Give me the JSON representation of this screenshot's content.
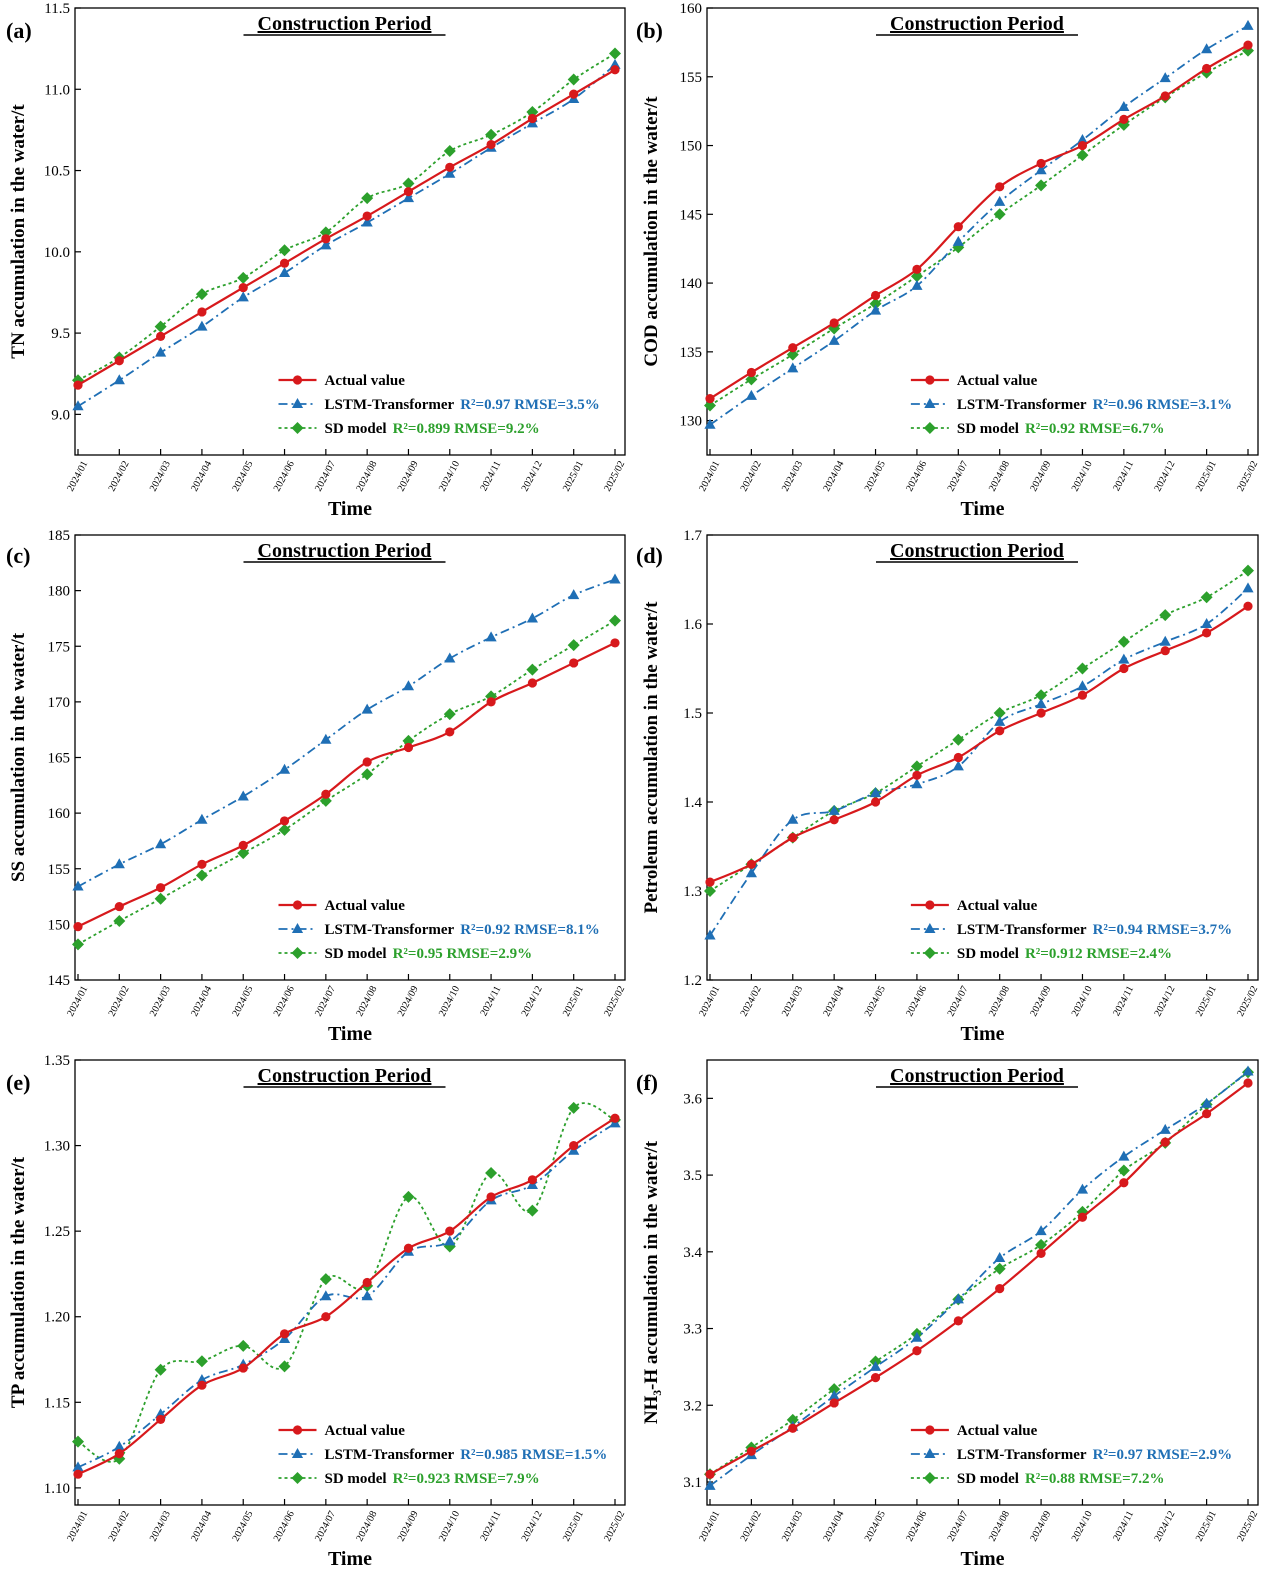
{
  "colors": {
    "actual": "#d7191c",
    "lstm": "#1f6fb5",
    "sd": "#2ca02c",
    "axis": "#000000"
  },
  "chart_data": [
    {
      "panel": "(a)",
      "type": "line",
      "title": "Construction Period",
      "xlabel": "Time",
      "ylabel": "TN accumulation in the water/t",
      "categories": [
        "2024/01",
        "2024/02",
        "2024/03",
        "2024/04",
        "2024/05",
        "2024/06",
        "2024/07",
        "2024/08",
        "2024/09",
        "2024/10",
        "2024/11",
        "2024/12",
        "2025/01",
        "2025/02"
      ],
      "ylim": [
        8.75,
        11.5
      ],
      "yticks": [
        "9.0",
        "9.5",
        "10.0",
        "10.5",
        "11.0",
        "11.5"
      ],
      "yticks_values": [
        9.0,
        9.5,
        10.0,
        10.5,
        11.0,
        11.5
      ],
      "legend_position": "bottom-right",
      "series": [
        {
          "name": "Actual value",
          "stats": "",
          "values": [
            9.18,
            9.33,
            9.48,
            9.63,
            9.78,
            9.93,
            10.08,
            10.22,
            10.37,
            10.52,
            10.66,
            10.82,
            10.97,
            11.12
          ]
        },
        {
          "name": "LSTM-Transformer",
          "stats": "R²=0.97 RMSE=3.5%",
          "values": [
            9.05,
            9.21,
            9.38,
            9.54,
            9.72,
            9.87,
            10.04,
            10.18,
            10.33,
            10.48,
            10.64,
            10.79,
            10.94,
            11.15
          ]
        },
        {
          "name": "SD model",
          "stats": "R²=0.899 RMSE=9.2%",
          "values": [
            9.21,
            9.35,
            9.54,
            9.74,
            9.84,
            10.01,
            10.12,
            10.33,
            10.42,
            10.62,
            10.72,
            10.86,
            11.06,
            11.22
          ]
        }
      ]
    },
    {
      "panel": "(b)",
      "type": "line",
      "title": "Construction Period",
      "xlabel": "Time",
      "ylabel": "COD accumulation in the water/t",
      "categories": [
        "2024/01",
        "2024/02",
        "2024/03",
        "2024/04",
        "2024/05",
        "2024/06",
        "2024/07",
        "2024/08",
        "2024/09",
        "2024/10",
        "2024/11",
        "2024/12",
        "2025/01",
        "2025/02"
      ],
      "ylim": [
        127.5,
        160
      ],
      "yticks": [
        "130",
        "135",
        "140",
        "145",
        "150",
        "155",
        "160"
      ],
      "yticks_values": [
        130,
        135,
        140,
        145,
        150,
        155,
        160
      ],
      "legend_position": "bottom-right",
      "series": [
        {
          "name": "Actual value",
          "stats": "",
          "values": [
            131.6,
            133.5,
            135.3,
            137.1,
            139.1,
            141.0,
            144.1,
            147.0,
            148.7,
            150.0,
            151.9,
            153.6,
            155.6,
            157.3
          ]
        },
        {
          "name": "LSTM-Transformer",
          "stats": "R²=0.96 RMSE=3.1%",
          "values": [
            129.7,
            131.8,
            133.8,
            135.8,
            138.0,
            139.8,
            143.0,
            145.9,
            148.2,
            150.4,
            152.8,
            154.9,
            157.0,
            158.7
          ]
        },
        {
          "name": "SD model",
          "stats": "R²=0.92 RMSE=6.7%",
          "values": [
            131.1,
            133.0,
            134.8,
            136.7,
            138.5,
            140.5,
            142.6,
            145.0,
            147.1,
            149.3,
            151.5,
            153.5,
            155.3,
            156.9
          ]
        }
      ]
    },
    {
      "panel": "(c)",
      "type": "line",
      "title": "Construction Period",
      "xlabel": "Time",
      "ylabel": "SS accumulation in the water/t",
      "categories": [
        "2024/01",
        "2024/02",
        "2024/03",
        "2024/04",
        "2024/05",
        "2024/06",
        "2024/07",
        "2024/08",
        "2024/09",
        "2024/10",
        "2024/11",
        "2024/12",
        "2025/01",
        "2025/02"
      ],
      "ylim": [
        145,
        185
      ],
      "yticks": [
        "145",
        "150",
        "155",
        "160",
        "165",
        "170",
        "175",
        "180",
        "185"
      ],
      "yticks_values": [
        145,
        150,
        155,
        160,
        165,
        170,
        175,
        180,
        185
      ],
      "legend_position": "bottom-right",
      "series": [
        {
          "name": "Actual value",
          "stats": "",
          "values": [
            149.8,
            151.6,
            153.3,
            155.4,
            157.1,
            159.3,
            161.7,
            164.6,
            165.9,
            167.3,
            170.0,
            171.7,
            173.5,
            175.3
          ]
        },
        {
          "name": "LSTM-Transformer",
          "stats": "R²=0.92 RMSE=8.1%",
          "values": [
            153.4,
            155.4,
            157.2,
            159.4,
            161.5,
            163.9,
            166.6,
            169.3,
            171.4,
            173.9,
            175.8,
            177.5,
            179.6,
            181.0
          ]
        },
        {
          "name": "SD model",
          "stats": "R²=0.95 RMSE=2.9%",
          "values": [
            148.2,
            150.3,
            152.3,
            154.4,
            156.4,
            158.5,
            161.1,
            163.5,
            166.5,
            168.9,
            170.5,
            172.9,
            175.1,
            177.3
          ]
        }
      ]
    },
    {
      "panel": "(d)",
      "type": "line",
      "title": "Construction Period",
      "xlabel": "Time",
      "ylabel": "Petroleum accumulation in the water/t",
      "categories": [
        "2024/01",
        "2024/02",
        "2024/03",
        "2024/04",
        "2024/05",
        "2024/06",
        "2024/07",
        "2024/08",
        "2024/09",
        "2024/10",
        "2024/11",
        "2024/12",
        "2025/01",
        "2025/02"
      ],
      "ylim": [
        1.2,
        1.7
      ],
      "yticks": [
        "1.2",
        "1.3",
        "1.4",
        "1.5",
        "1.6",
        "1.7"
      ],
      "yticks_values": [
        1.2,
        1.3,
        1.4,
        1.5,
        1.6,
        1.7
      ],
      "legend_position": "bottom-right",
      "series": [
        {
          "name": "Actual value",
          "stats": "",
          "values": [
            1.31,
            1.33,
            1.36,
            1.38,
            1.4,
            1.43,
            1.45,
            1.48,
            1.5,
            1.52,
            1.55,
            1.57,
            1.59,
            1.62
          ]
        },
        {
          "name": "LSTM-Transformer",
          "stats": "R²=0.94 RMSE=3.7%",
          "values": [
            1.25,
            1.32,
            1.38,
            1.39,
            1.41,
            1.42,
            1.44,
            1.49,
            1.51,
            1.53,
            1.56,
            1.58,
            1.6,
            1.64
          ]
        },
        {
          "name": "SD model",
          "stats": "R²=0.912 RMSE=2.4%",
          "values": [
            1.3,
            1.33,
            1.36,
            1.39,
            1.41,
            1.44,
            1.47,
            1.5,
            1.52,
            1.55,
            1.58,
            1.61,
            1.63,
            1.66
          ]
        }
      ]
    },
    {
      "panel": "(e)",
      "type": "line",
      "title": "Construction Period",
      "xlabel": "Time",
      "ylabel": "TP accumulation in the water/t",
      "categories": [
        "2024/01",
        "2024/02",
        "2024/03",
        "2024/04",
        "2024/05",
        "2024/06",
        "2024/07",
        "2024/08",
        "2024/09",
        "2024/10",
        "2024/11",
        "2024/12",
        "2025/01",
        "2025/02"
      ],
      "ylim": [
        1.09,
        1.35
      ],
      "yticks": [
        "1.10",
        "1.15",
        "1.20",
        "1.25",
        "1.30",
        "1.35"
      ],
      "yticks_values": [
        1.1,
        1.15,
        1.2,
        1.25,
        1.3,
        1.35
      ],
      "legend_position": "bottom-right",
      "series": [
        {
          "name": "Actual value",
          "stats": "",
          "values": [
            1.108,
            1.12,
            1.14,
            1.16,
            1.17,
            1.19,
            1.2,
            1.22,
            1.24,
            1.25,
            1.27,
            1.28,
            1.3,
            1.316
          ]
        },
        {
          "name": "LSTM-Transformer",
          "stats": "R²=0.985 RMSE=1.5%",
          "values": [
            1.112,
            1.124,
            1.143,
            1.163,
            1.172,
            1.187,
            1.212,
            1.212,
            1.238,
            1.244,
            1.268,
            1.277,
            1.297,
            1.313
          ]
        },
        {
          "name": "SD model",
          "stats": "R²=0.923 RMSE=7.9%",
          "values": [
            1.127,
            1.117,
            1.169,
            1.174,
            1.183,
            1.171,
            1.222,
            1.218,
            1.27,
            1.241,
            1.284,
            1.262,
            1.322,
            1.315
          ]
        }
      ]
    },
    {
      "panel": "(f)",
      "type": "line",
      "title": "Construction Period",
      "xlabel": "Time",
      "ylabel": "NH₃-H accumulation in the water/t",
      "categories": [
        "2024/01",
        "2024/02",
        "2024/03",
        "2024/04",
        "2024/05",
        "2024/06",
        "2024/07",
        "2024/08",
        "2024/09",
        "2024/10",
        "2024/11",
        "2024/12",
        "2025/01",
        "2025/02"
      ],
      "ylim": [
        3.07,
        3.65
      ],
      "yticks": [
        "3.1",
        "3.2",
        "3.3",
        "3.4",
        "3.5",
        "3.6"
      ],
      "yticks_values": [
        3.1,
        3.2,
        3.3,
        3.4,
        3.5,
        3.6
      ],
      "legend_position": "bottom-right",
      "series": [
        {
          "name": "Actual value",
          "stats": "",
          "values": [
            3.11,
            3.14,
            3.17,
            3.203,
            3.236,
            3.271,
            3.31,
            3.352,
            3.398,
            3.445,
            3.49,
            3.543,
            3.58,
            3.62
          ]
        },
        {
          "name": "LSTM-Transformer",
          "stats": "R²=0.97 RMSE=2.9%",
          "values": [
            3.095,
            3.135,
            3.172,
            3.212,
            3.25,
            3.288,
            3.338,
            3.392,
            3.427,
            3.481,
            3.524,
            3.559,
            3.593,
            3.635
          ]
        },
        {
          "name": "SD model",
          "stats": "R²=0.88 RMSE=7.2%",
          "values": [
            3.11,
            3.145,
            3.181,
            3.221,
            3.257,
            3.293,
            3.338,
            3.378,
            3.409,
            3.452,
            3.506,
            3.542,
            3.592,
            3.634
          ]
        }
      ]
    }
  ]
}
